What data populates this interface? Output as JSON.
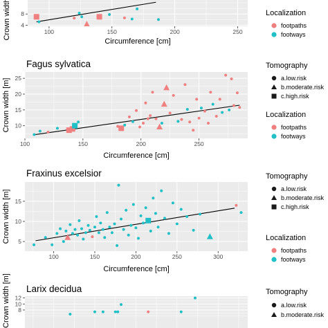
{
  "colors": {
    "footpaths": "#f08080",
    "footways": "#20c0c6",
    "panel_bg": "#ebebeb",
    "grid": "#ffffff",
    "trend": "#000000"
  },
  "legend": {
    "tomography_title": "Tomography",
    "tomography_items": [
      "a.low.risk",
      "b.moderate.risk",
      "c.high.risk"
    ],
    "tomography_shapes": [
      "circle",
      "triangle",
      "square"
    ],
    "localization_title": "Localization",
    "localization_items": [
      "footpaths",
      "footways"
    ]
  },
  "chart_data": [
    {
      "type": "scatter",
      "title": "",
      "xlabel": "Circumference [cm]",
      "ylabel": "Crown width [m]",
      "xlim": [
        83,
        258
      ],
      "ylim": [
        3.6,
        13
      ],
      "xticks": [
        100,
        150,
        200,
        250
      ],
      "yticks": [
        4,
        8
      ],
      "trend": {
        "x": [
          90,
          185
        ],
        "y": [
          5.2,
          12.2
        ]
      },
      "points": [
        {
          "x": 90,
          "y": 7.0,
          "loc": "footpaths",
          "shape": "square"
        },
        {
          "x": 92,
          "y": 5.2,
          "loc": "footways",
          "shape": "circle"
        },
        {
          "x": 120,
          "y": 6.5,
          "loc": "footpaths",
          "shape": "circle"
        },
        {
          "x": 124,
          "y": 8.3,
          "loc": "footways",
          "shape": "circle"
        },
        {
          "x": 126,
          "y": 7.0,
          "loc": "footways",
          "shape": "circle"
        },
        {
          "x": 130,
          "y": 4.3,
          "loc": "footpaths",
          "shape": "triangle"
        },
        {
          "x": 140,
          "y": 7.0,
          "loc": "footpaths",
          "shape": "square"
        },
        {
          "x": 148,
          "y": 7.8,
          "loc": "footways",
          "shape": "circle"
        },
        {
          "x": 160,
          "y": 6.6,
          "loc": "footpaths",
          "shape": "circle"
        },
        {
          "x": 166,
          "y": 6.2,
          "loc": "footways",
          "shape": "circle"
        },
        {
          "x": 170,
          "y": 9.8,
          "loc": "footways",
          "shape": "circle"
        },
        {
          "x": 187,
          "y": 6.0,
          "loc": "footways",
          "shape": "circle"
        }
      ]
    },
    {
      "type": "scatter",
      "title": "Fagus sylvatica",
      "xlabel": "Circumference [cm]",
      "ylabel": "Crown width [m]",
      "xlim": [
        100,
        292
      ],
      "ylim": [
        6,
        27
      ],
      "xticks": [
        100,
        150,
        200,
        250
      ],
      "yticks": [
        10,
        15,
        20,
        25
      ],
      "trend": {
        "x": [
          107,
          285
        ],
        "y": [
          7.1,
          16.5
        ]
      },
      "points": [
        {
          "x": 108,
          "y": 7.2,
          "loc": "footways",
          "shape": "circle"
        },
        {
          "x": 113,
          "y": 8.3,
          "loc": "footways",
          "shape": "circle"
        },
        {
          "x": 120,
          "y": 8.0,
          "loc": "footpaths",
          "shape": "circle"
        },
        {
          "x": 128,
          "y": 9.2,
          "loc": "footways",
          "shape": "circle"
        },
        {
          "x": 138,
          "y": 8.6,
          "loc": "footpaths",
          "shape": "square"
        },
        {
          "x": 141,
          "y": 9.0,
          "loc": "footpaths",
          "shape": "square"
        },
        {
          "x": 143,
          "y": 10.0,
          "loc": "footways",
          "shape": "square"
        },
        {
          "x": 146,
          "y": 11.2,
          "loc": "footways",
          "shape": "circle"
        },
        {
          "x": 180,
          "y": 9.8,
          "loc": "footpaths",
          "shape": "circle"
        },
        {
          "x": 183,
          "y": 9.2,
          "loc": "footpaths",
          "shape": "square"
        },
        {
          "x": 186,
          "y": 10.2,
          "loc": "footways",
          "shape": "circle"
        },
        {
          "x": 190,
          "y": 12.8,
          "loc": "footpaths",
          "shape": "circle"
        },
        {
          "x": 193,
          "y": 11.3,
          "loc": "footways",
          "shape": "circle"
        },
        {
          "x": 196,
          "y": 14.8,
          "loc": "footpaths",
          "shape": "circle"
        },
        {
          "x": 199,
          "y": 9.6,
          "loc": "footpaths",
          "shape": "circle"
        },
        {
          "x": 202,
          "y": 10.8,
          "loc": "footpaths",
          "shape": "circle"
        },
        {
          "x": 204,
          "y": 17.2,
          "loc": "footpaths",
          "shape": "circle"
        },
        {
          "x": 206,
          "y": 12.2,
          "loc": "footpaths",
          "shape": "circle"
        },
        {
          "x": 208,
          "y": 13.2,
          "loc": "footpaths",
          "shape": "circle"
        },
        {
          "x": 210,
          "y": 20.6,
          "loc": "footpaths",
          "shape": "circle"
        },
        {
          "x": 213,
          "y": 12.2,
          "loc": "footpaths",
          "shape": "circle"
        },
        {
          "x": 216,
          "y": 9.6,
          "loc": "footpaths",
          "shape": "triangle"
        },
        {
          "x": 218,
          "y": 10.8,
          "loc": "footways",
          "shape": "circle"
        },
        {
          "x": 220,
          "y": 16.8,
          "loc": "footpaths",
          "shape": "triangle"
        },
        {
          "x": 222,
          "y": 22.0,
          "loc": "footpaths",
          "shape": "triangle"
        },
        {
          "x": 225,
          "y": 14.0,
          "loc": "footpaths",
          "shape": "circle"
        },
        {
          "x": 228,
          "y": 19.6,
          "loc": "footpaths",
          "shape": "circle"
        },
        {
          "x": 232,
          "y": 11.4,
          "loc": "footways",
          "shape": "circle"
        },
        {
          "x": 235,
          "y": 12.0,
          "loc": "footpaths",
          "shape": "circle"
        },
        {
          "x": 238,
          "y": 23.0,
          "loc": "footpaths",
          "shape": "circle"
        },
        {
          "x": 240,
          "y": 15.2,
          "loc": "footways",
          "shape": "circle"
        },
        {
          "x": 242,
          "y": 11.2,
          "loc": "footpaths",
          "shape": "circle"
        },
        {
          "x": 245,
          "y": 8.6,
          "loc": "footpaths",
          "shape": "circle"
        },
        {
          "x": 248,
          "y": 18.4,
          "loc": "footpaths",
          "shape": "circle"
        },
        {
          "x": 250,
          "y": 12.4,
          "loc": "footpaths",
          "shape": "circle"
        },
        {
          "x": 252,
          "y": 15.6,
          "loc": "footways",
          "shape": "circle"
        },
        {
          "x": 255,
          "y": 14.6,
          "loc": "footpaths",
          "shape": "circle"
        },
        {
          "x": 258,
          "y": 10.8,
          "loc": "footpaths",
          "shape": "circle"
        },
        {
          "x": 260,
          "y": 20.6,
          "loc": "footpaths",
          "shape": "circle"
        },
        {
          "x": 262,
          "y": 16.8,
          "loc": "footways",
          "shape": "circle"
        },
        {
          "x": 265,
          "y": 13.0,
          "loc": "footpaths",
          "shape": "circle"
        },
        {
          "x": 268,
          "y": 18.4,
          "loc": "footpaths",
          "shape": "circle"
        },
        {
          "x": 270,
          "y": 14.2,
          "loc": "footways",
          "shape": "circle"
        },
        {
          "x": 273,
          "y": 26.0,
          "loc": "footpaths",
          "shape": "circle"
        },
        {
          "x": 276,
          "y": 15.0,
          "loc": "footways",
          "shape": "circle"
        },
        {
          "x": 278,
          "y": 24.8,
          "loc": "footpaths",
          "shape": "circle"
        },
        {
          "x": 280,
          "y": 16.4,
          "loc": "footpaths",
          "shape": "circle"
        },
        {
          "x": 283,
          "y": 20.4,
          "loc": "footpaths",
          "shape": "circle"
        },
        {
          "x": 285,
          "y": 15.8,
          "loc": "footpaths",
          "shape": "circle"
        }
      ]
    },
    {
      "type": "scatter",
      "title": "Fraxinus excelsior",
      "xlabel": "Circumference [cm]",
      "ylabel": "Crown width [m]",
      "xlim": [
        65,
        336
      ],
      "ylim": [
        2.6,
        19.8
      ],
      "xticks": [
        100,
        150,
        200,
        250,
        300
      ],
      "yticks": [
        5,
        10,
        15
      ],
      "trend": {
        "x": [
          78,
          320
        ],
        "y": [
          5.2,
          13.3
        ]
      },
      "points": [
        {
          "x": 76,
          "y": 4.2,
          "loc": "footways",
          "shape": "circle"
        },
        {
          "x": 90,
          "y": 6.0,
          "loc": "footways",
          "shape": "circle"
        },
        {
          "x": 98,
          "y": 4.2,
          "loc": "footways",
          "shape": "circle"
        },
        {
          "x": 104,
          "y": 7.0,
          "loc": "footways",
          "shape": "circle"
        },
        {
          "x": 108,
          "y": 8.2,
          "loc": "footways",
          "shape": "circle"
        },
        {
          "x": 112,
          "y": 5.0,
          "loc": "footways",
          "shape": "circle"
        },
        {
          "x": 115,
          "y": 7.6,
          "loc": "footways",
          "shape": "circle"
        },
        {
          "x": 117,
          "y": 6.0,
          "loc": "footpaths",
          "shape": "triangle"
        },
        {
          "x": 120,
          "y": 9.2,
          "loc": "footways",
          "shape": "circle"
        },
        {
          "x": 123,
          "y": 7.0,
          "loc": "footways",
          "shape": "circle"
        },
        {
          "x": 126,
          "y": 8.0,
          "loc": "footways",
          "shape": "circle"
        },
        {
          "x": 129,
          "y": 6.6,
          "loc": "footways",
          "shape": "circle"
        },
        {
          "x": 131,
          "y": 10.2,
          "loc": "footways",
          "shape": "circle"
        },
        {
          "x": 134,
          "y": 8.2,
          "loc": "footways",
          "shape": "circle"
        },
        {
          "x": 136,
          "y": 5.6,
          "loc": "footways",
          "shape": "circle"
        },
        {
          "x": 139,
          "y": 7.2,
          "loc": "footways",
          "shape": "circle"
        },
        {
          "x": 142,
          "y": 9.0,
          "loc": "footways",
          "shape": "circle"
        },
        {
          "x": 144,
          "y": 7.8,
          "loc": "footways",
          "shape": "circle"
        },
        {
          "x": 147,
          "y": 6.2,
          "loc": "footpaths",
          "shape": "circle"
        },
        {
          "x": 150,
          "y": 8.6,
          "loc": "footways",
          "shape": "circle"
        },
        {
          "x": 152,
          "y": 11.2,
          "loc": "footways",
          "shape": "circle"
        },
        {
          "x": 155,
          "y": 7.2,
          "loc": "footways",
          "shape": "circle"
        },
        {
          "x": 157,
          "y": 9.6,
          "loc": "footways",
          "shape": "circle"
        },
        {
          "x": 160,
          "y": 8.0,
          "loc": "footways",
          "shape": "circle"
        },
        {
          "x": 162,
          "y": 6.0,
          "loc": "footways",
          "shape": "circle"
        },
        {
          "x": 165,
          "y": 12.2,
          "loc": "footways",
          "shape": "circle"
        },
        {
          "x": 168,
          "y": 8.6,
          "loc": "footways",
          "shape": "circle"
        },
        {
          "x": 171,
          "y": 7.2,
          "loc": "footways",
          "shape": "circle"
        },
        {
          "x": 174,
          "y": 9.4,
          "loc": "footways",
          "shape": "circle"
        },
        {
          "x": 177,
          "y": 4.0,
          "loc": "footways",
          "shape": "circle"
        },
        {
          "x": 179,
          "y": 19.0,
          "loc": "footways",
          "shape": "circle"
        },
        {
          "x": 182,
          "y": 10.6,
          "loc": "footways",
          "shape": "circle"
        },
        {
          "x": 185,
          "y": 8.0,
          "loc": "footways",
          "shape": "circle"
        },
        {
          "x": 188,
          "y": 12.8,
          "loc": "footways",
          "shape": "circle"
        },
        {
          "x": 191,
          "y": 6.6,
          "loc": "footways",
          "shape": "circle"
        },
        {
          "x": 194,
          "y": 9.0,
          "loc": "footways",
          "shape": "circle"
        },
        {
          "x": 197,
          "y": 14.2,
          "loc": "footways",
          "shape": "circle"
        },
        {
          "x": 200,
          "y": 8.4,
          "loc": "footways",
          "shape": "circle"
        },
        {
          "x": 203,
          "y": 5.8,
          "loc": "footways",
          "shape": "circle"
        },
        {
          "x": 206,
          "y": 11.4,
          "loc": "footways",
          "shape": "circle"
        },
        {
          "x": 209,
          "y": 9.6,
          "loc": "footways",
          "shape": "circle"
        },
        {
          "x": 212,
          "y": 13.4,
          "loc": "footways",
          "shape": "circle"
        },
        {
          "x": 215,
          "y": 10.2,
          "loc": "footways",
          "shape": "square"
        },
        {
          "x": 218,
          "y": 7.6,
          "loc": "footways",
          "shape": "circle"
        },
        {
          "x": 221,
          "y": 15.8,
          "loc": "footways",
          "shape": "circle"
        },
        {
          "x": 224,
          "y": 12.0,
          "loc": "footways",
          "shape": "circle"
        },
        {
          "x": 227,
          "y": 8.6,
          "loc": "footways",
          "shape": "circle"
        },
        {
          "x": 231,
          "y": 17.6,
          "loc": "footways",
          "shape": "circle"
        },
        {
          "x": 235,
          "y": 10.8,
          "loc": "footways",
          "shape": "circle"
        },
        {
          "x": 240,
          "y": 7.0,
          "loc": "footways",
          "shape": "circle"
        },
        {
          "x": 245,
          "y": 14.6,
          "loc": "footways",
          "shape": "circle"
        },
        {
          "x": 250,
          "y": 9.4,
          "loc": "footways",
          "shape": "circle"
        },
        {
          "x": 255,
          "y": 13.0,
          "loc": "footways",
          "shape": "circle"
        },
        {
          "x": 262,
          "y": 11.2,
          "loc": "footways",
          "shape": "circle"
        },
        {
          "x": 270,
          "y": 7.8,
          "loc": "footways",
          "shape": "circle"
        },
        {
          "x": 278,
          "y": 11.8,
          "loc": "footways",
          "shape": "circle"
        },
        {
          "x": 290,
          "y": 6.2,
          "loc": "footways",
          "shape": "triangle"
        },
        {
          "x": 322,
          "y": 14.0,
          "loc": "footpaths",
          "shape": "circle"
        },
        {
          "x": 328,
          "y": 12.2,
          "loc": "footways",
          "shape": "circle"
        }
      ]
    },
    {
      "type": "scatter",
      "title": "Larix decidua",
      "xlabel": "",
      "ylabel": "Crown width [m]",
      "xlim": [
        65,
        336
      ],
      "ylim": [
        2,
        12.6
      ],
      "xticks": [],
      "yticks": [
        8,
        10,
        12
      ],
      "trend": null,
      "points": [
        {
          "x": 120,
          "y": 6.6,
          "loc": "footways",
          "shape": "circle"
        },
        {
          "x": 150,
          "y": 7.4,
          "loc": "footways",
          "shape": "circle"
        },
        {
          "x": 160,
          "y": 7.4,
          "loc": "footways",
          "shape": "circle"
        },
        {
          "x": 175,
          "y": 7.4,
          "loc": "footways",
          "shape": "circle"
        },
        {
          "x": 178,
          "y": 7.4,
          "loc": "footways",
          "shape": "circle"
        },
        {
          "x": 182,
          "y": 9.8,
          "loc": "footways",
          "shape": "circle"
        },
        {
          "x": 215,
          "y": 7.4,
          "loc": "footpaths",
          "shape": "circle"
        },
        {
          "x": 255,
          "y": 7.4,
          "loc": "footways",
          "shape": "circle"
        },
        {
          "x": 272,
          "y": 12.0,
          "loc": "footways",
          "shape": "circle"
        }
      ]
    }
  ]
}
